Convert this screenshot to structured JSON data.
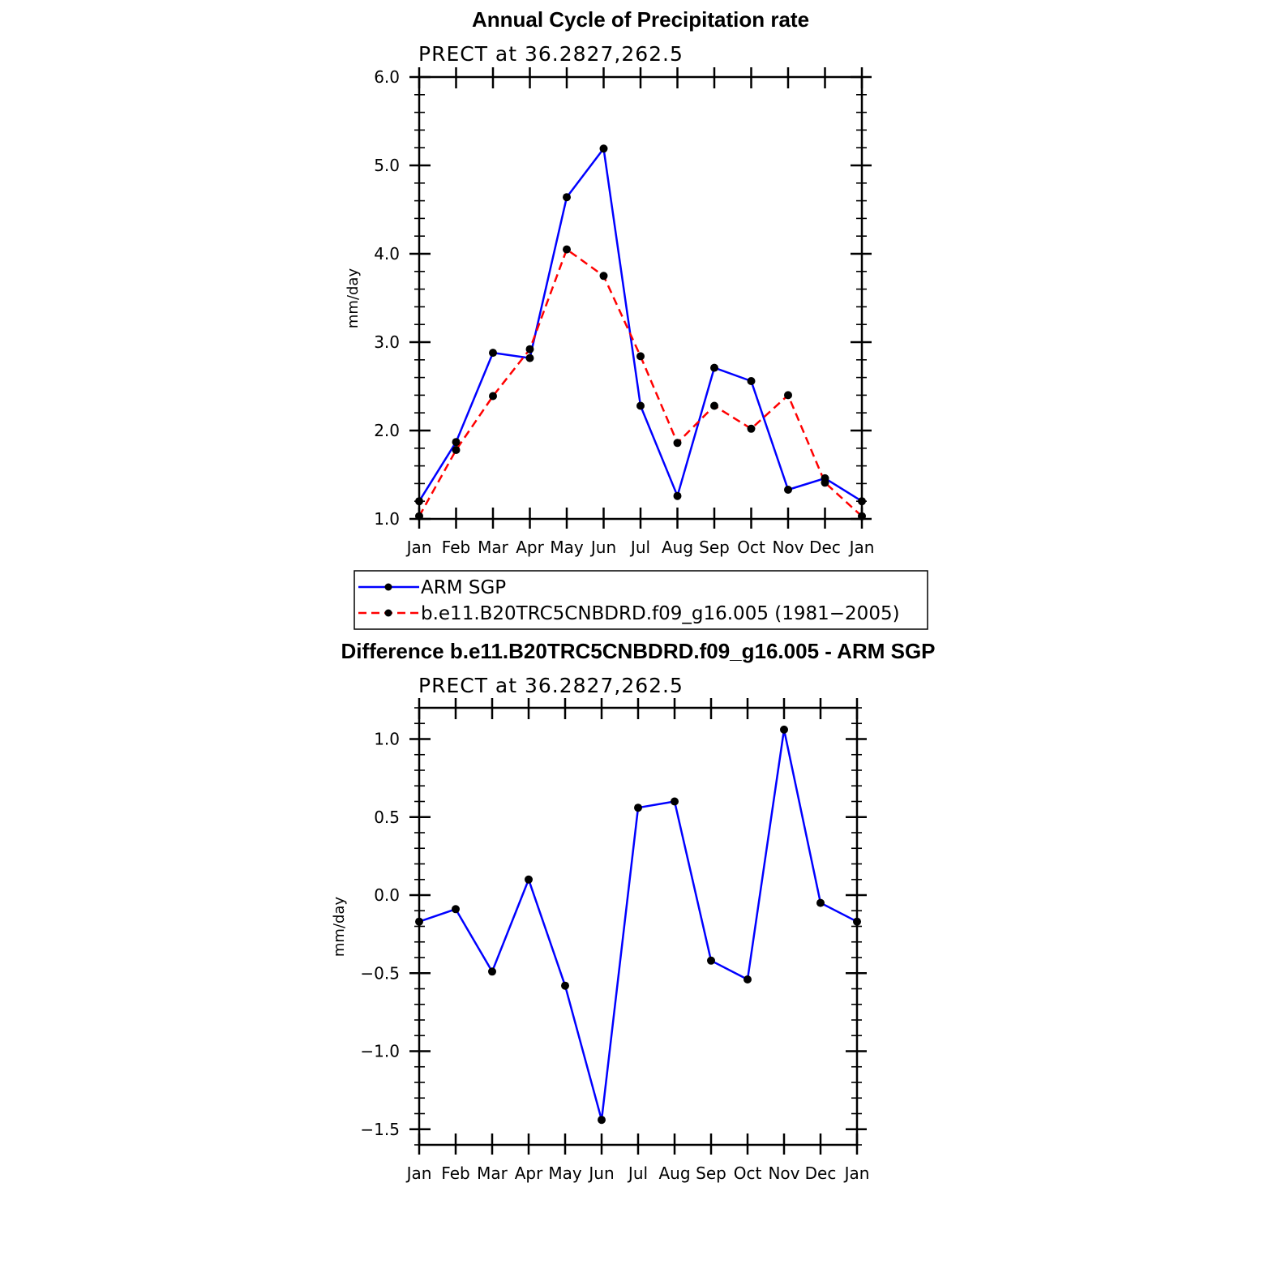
{
  "chart_data": [
    {
      "type": "line",
      "title": "Annual Cycle of Precipitation rate",
      "subtitle": "PRECT at 36.2827,262.5",
      "ylabel": "mm/day",
      "xlabel": "",
      "categories": [
        "Jan",
        "Feb",
        "Mar",
        "Apr",
        "May",
        "Jun",
        "Jul",
        "Aug",
        "Sep",
        "Oct",
        "Nov",
        "Dec",
        "Jan"
      ],
      "ylim": [
        1.0,
        6.0
      ],
      "yticks": [
        "1.0",
        "2.0",
        "3.0",
        "4.0",
        "5.0",
        "6.0"
      ],
      "legend_position": "below",
      "series": [
        {
          "name": "ARM SGP",
          "color": "#0000ff",
          "dash": "solid",
          "values": [
            1.2,
            1.87,
            2.88,
            2.82,
            4.64,
            5.19,
            2.28,
            1.26,
            2.71,
            2.56,
            1.33,
            1.46,
            1.2
          ]
        },
        {
          "name": "b.e11.B20TRC5CNBDRD.f09_g16.005 (1981−2005)",
          "color": "#ff0000",
          "dash": "dashed",
          "values": [
            1.03,
            1.78,
            2.39,
            2.92,
            4.05,
            3.75,
            2.84,
            1.86,
            2.28,
            2.02,
            2.4,
            1.41,
            1.03
          ]
        }
      ]
    },
    {
      "type": "line",
      "title": "Difference b.e11.B20TRC5CNBDRD.f09_g16.005 - ARM SGP",
      "subtitle": "PRECT at 36.2827,262.5",
      "ylabel": "mm/day",
      "xlabel": "",
      "categories": [
        "Jan",
        "Feb",
        "Mar",
        "Apr",
        "May",
        "Jun",
        "Jul",
        "Aug",
        "Sep",
        "Oct",
        "Nov",
        "Dec",
        "Jan"
      ],
      "ylim": [
        -1.6,
        1.2
      ],
      "yticks": [
        "−1.5",
        "−1.0",
        "−0.5",
        "0.0",
        "0.5",
        "1.0"
      ],
      "series": [
        {
          "color": "#0000ff",
          "dash": "solid",
          "values": [
            -0.17,
            -0.09,
            -0.49,
            0.1,
            -0.58,
            -1.44,
            0.56,
            0.6,
            -0.42,
            -0.54,
            1.06,
            -0.05,
            -0.17
          ]
        }
      ]
    }
  ]
}
